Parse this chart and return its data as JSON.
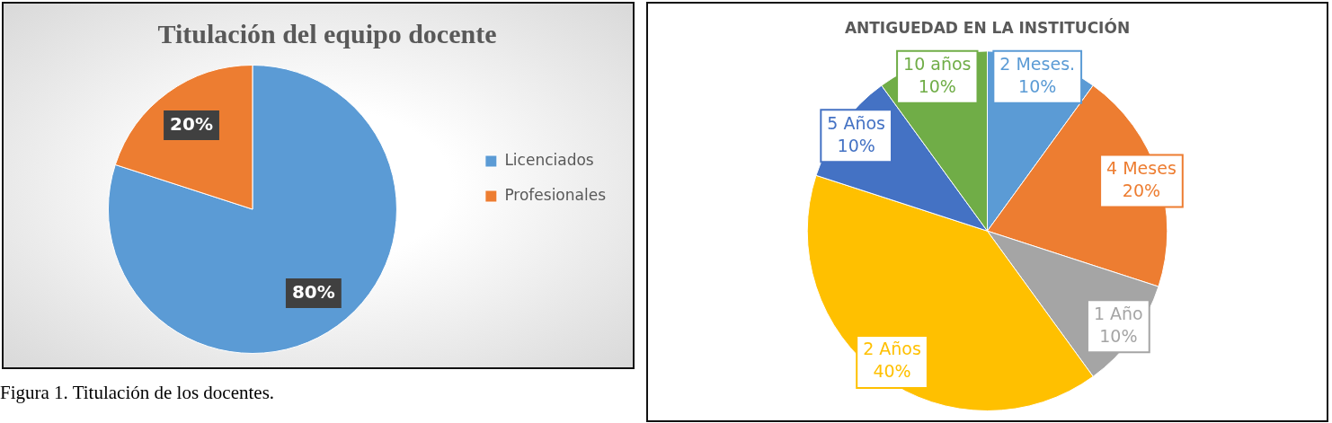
{
  "chart_data": [
    {
      "type": "pie",
      "title": "Titulación del equipo docente",
      "categories": [
        "Licenciados",
        "Profesionales"
      ],
      "values": [
        80,
        20
      ],
      "colors": [
        "#5b9bd5",
        "#ed7d31"
      ],
      "value_labels": [
        "80%",
        "20%"
      ],
      "legend": "right",
      "annotations": [
        "Figura 1. Titulación de los docentes."
      ]
    },
    {
      "type": "pie",
      "title": "ANTIGUEDAD EN LA INSTITUCIÓN",
      "categories": [
        "2 Meses.",
        "4 Meses",
        "1 Año",
        "2 Años",
        "5 Años",
        "10 años"
      ],
      "values": [
        10,
        20,
        10,
        40,
        10,
        10
      ],
      "colors": [
        "#5b9bd5",
        "#ed7d31",
        "#a5a5a5",
        "#ffc000",
        "#4472c4",
        "#70ad47"
      ],
      "value_labels": [
        "10%",
        "20%",
        "10%",
        "40%",
        "10%",
        "10%"
      ],
      "legend": false
    }
  ]
}
